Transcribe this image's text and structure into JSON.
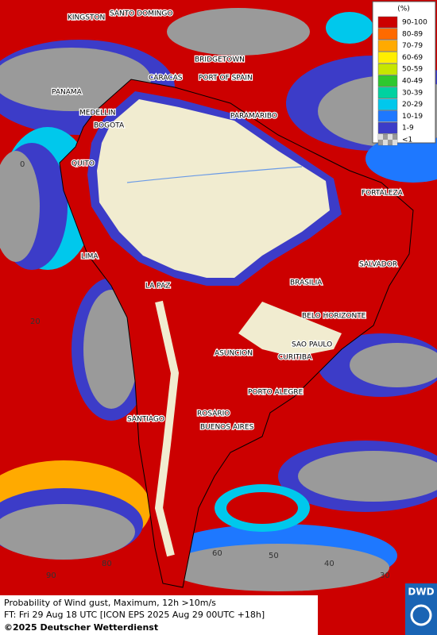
{
  "legend": {
    "unit": "(%)",
    "items": [
      {
        "label": "90-100",
        "color": "#cc0000"
      },
      {
        "label": "80-89",
        "color": "#ff6a00"
      },
      {
        "label": "70-79",
        "color": "#ffaa00"
      },
      {
        "label": "60-69",
        "color": "#ffee00"
      },
      {
        "label": "50-59",
        "color": "#c6e600"
      },
      {
        "label": "40-49",
        "color": "#2ec82e"
      },
      {
        "label": "30-39",
        "color": "#00d2a0"
      },
      {
        "label": "20-29",
        "color": "#00c8ec"
      },
      {
        "label": "10-19",
        "color": "#1e78ff"
      },
      {
        "label": "1-9",
        "color": "#3c3cc8"
      },
      {
        "label": "<1",
        "color": "#9a9a9a"
      }
    ]
  },
  "cities": [
    "KINGSTON",
    "SANTO DOMINGO",
    "BRIDGETOWN",
    "CARACAS",
    "PORT OF SPAIN",
    "PANAMA",
    "MEDELLIN",
    "BOGOTA",
    "PARAMARIBO",
    "QUITO",
    "FORTALEZA",
    "LIMA",
    "SALVADOR",
    "LA PAZ",
    "BRASILIA",
    "BELO HORIZONTE",
    "SAO PAULO",
    "ASUNCION",
    "CURITIBA",
    "PORTO ALEGRE",
    "SANTIAGO",
    "ROSARIO",
    "BUENOS AIRES"
  ],
  "grid_labels": [
    "0",
    "20",
    "80",
    "60",
    "50",
    "40",
    "30",
    "90"
  ],
  "footer": {
    "product": "Probability of Wind gust, Maximum, 12h >10m/s",
    "forecast": "FT: Fri 29 Aug 18 UTC [ICON EPS 2025 Aug 29 00UTC +18h]",
    "copyright": "©2025 Deutscher Wetterdienst"
  },
  "logo": "DWD"
}
